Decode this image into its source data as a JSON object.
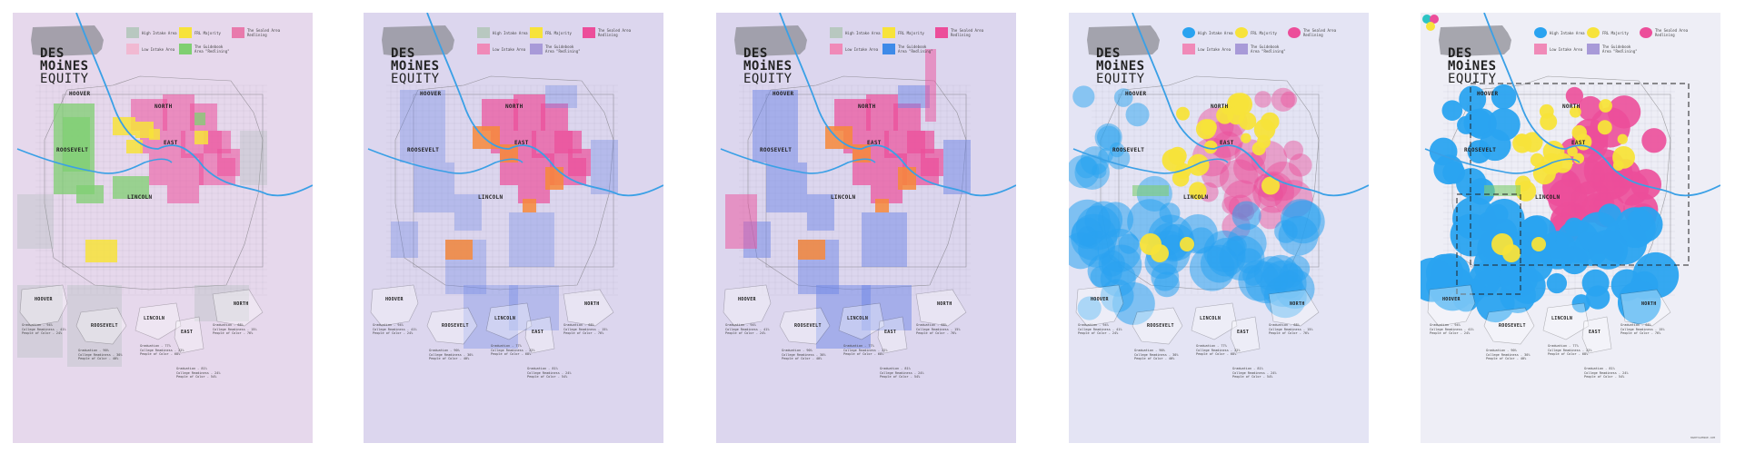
{
  "title": {
    "line1": "DES",
    "line2": "MOiNES",
    "line3": "EQUITY"
  },
  "neighborhoods": {
    "hoover": "HOOVER",
    "north": "NORTH",
    "roosevelt": "ROOSEVELT",
    "east": "EAST",
    "lincoln": "LINCOLN"
  },
  "legend": {
    "high_intake": "High Intake Area",
    "low_intake": "Low Intake Area",
    "frl": "FRL Majority",
    "sealed": "The Sealed Area Redlining",
    "redlining": "The Guidebook Area \"Redlining\""
  },
  "stats": [
    {
      "a": "Graduation - 94%",
      "b": "College Readiness - 41%",
      "c": "People of Color - 24%"
    },
    {
      "a": "Graduation - 90%",
      "b": "College Readiness - 30%",
      "c": "People of Color - 40%"
    },
    {
      "a": "Graduation - 77%",
      "b": "College Readiness - 22%",
      "c": "People of Color - 68%"
    },
    {
      "a": "Graduation - 81%",
      "b": "College Readiness - 24%",
      "c": "People of Color - 54%"
    },
    {
      "a": "Graduation - 68%",
      "b": "College Readiness - 15%",
      "c": "People of Color - 76%"
    }
  ],
  "colors": {
    "pink": "#ec4e9a",
    "yellow": "#f7e33a",
    "green": "#7fcf71",
    "blue": "#2aa3f0",
    "orange": "#f7883a",
    "river": "#3aa0e6"
  },
  "posters": [
    {
      "id": "poster-1",
      "bg": "#e6d8ec"
    },
    {
      "id": "poster-2",
      "bg": "#dcd6ee"
    },
    {
      "id": "poster-3",
      "bg": "#dcd6ee"
    },
    {
      "id": "poster-4",
      "bg": "#e4e4f4"
    },
    {
      "id": "poster-5",
      "bg": "#eeeef6"
    }
  ],
  "credit": "HAPPYAVENUE.COM"
}
